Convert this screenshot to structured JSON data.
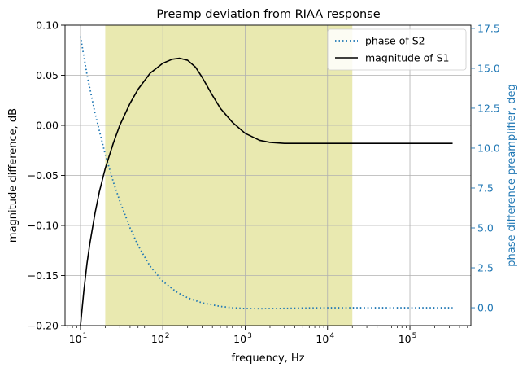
{
  "chart_data": {
    "type": "line",
    "title": "Preamp deviation from RIAA response",
    "xlabel": "frequency, Hz",
    "ylabel": "magnitude difference, dB",
    "y2label": "phase difference preamplifier, deg",
    "xscale": "log",
    "xlim": [
      6.5,
      550000
    ],
    "ylim": [
      -0.2,
      0.1
    ],
    "y2lim": [
      -1.12,
      17.7
    ],
    "grid": true,
    "legend_position": "top-right",
    "x_tick_labels": [
      "10",
      "10",
      "10",
      "10",
      "10"
    ],
    "x_tick_exponents": [
      "1",
      "2",
      "3",
      "4",
      "5"
    ],
    "x_tick_values": [
      10,
      100,
      1000,
      10000,
      100000
    ],
    "y_tick_labels": [
      "0.10",
      "0.05",
      "0.00",
      "−0.05",
      "−0.10",
      "−0.15",
      "−0.20"
    ],
    "y_tick_values": [
      0.1,
      0.05,
      0.0,
      -0.05,
      -0.1,
      -0.15,
      -0.2
    ],
    "y2_tick_labels": [
      "17.5",
      "15.0",
      "12.5",
      "10.0",
      "7.5",
      "5.0",
      "2.5",
      "0.0"
    ],
    "y2_tick_values": [
      17.5,
      15.0,
      12.5,
      10.0,
      7.5,
      5.0,
      2.5,
      0.0
    ],
    "shaded_band": {
      "x_start": 20,
      "x_end": 20000,
      "color": "#e9e9b0"
    },
    "series": [
      {
        "name": "phase of S2",
        "axis": "right",
        "style": "dotted",
        "color": "#1f77b4",
        "x": [
          10,
          12,
          15,
          20,
          25,
          30,
          40,
          50,
          70,
          100,
          150,
          200,
          300,
          500,
          700,
          1000,
          1500,
          2000,
          3000,
          5000,
          10000,
          20000,
          50000,
          100000,
          200000,
          330000
        ],
        "y": [
          17.0,
          14.6,
          12.2,
          9.6,
          7.9,
          6.7,
          5.0,
          3.9,
          2.6,
          1.65,
          0.95,
          0.62,
          0.3,
          0.08,
          0.0,
          -0.05,
          -0.06,
          -0.05,
          -0.04,
          -0.02,
          0.0,
          0.0,
          0.0,
          0.0,
          0.0,
          0.0
        ]
      },
      {
        "name": "magnitude of S1",
        "axis": "left",
        "style": "solid",
        "color": "#000000",
        "x": [
          10,
          11,
          12,
          13,
          15,
          17,
          20,
          25,
          30,
          40,
          50,
          70,
          100,
          130,
          160,
          200,
          250,
          300,
          400,
          500,
          700,
          1000,
          1500,
          2000,
          3000,
          5000,
          10000,
          20000,
          50000,
          100000,
          200000,
          330000
        ],
        "y": [
          -0.2,
          -0.165,
          -0.138,
          -0.118,
          -0.088,
          -0.066,
          -0.043,
          -0.018,
          0.0,
          0.022,
          0.036,
          0.052,
          0.062,
          0.066,
          0.067,
          0.065,
          0.058,
          0.048,
          0.03,
          0.017,
          0.003,
          -0.008,
          -0.015,
          -0.017,
          -0.018,
          -0.018,
          -0.018,
          -0.018,
          -0.018,
          -0.018,
          -0.018,
          -0.018
        ]
      }
    ]
  }
}
